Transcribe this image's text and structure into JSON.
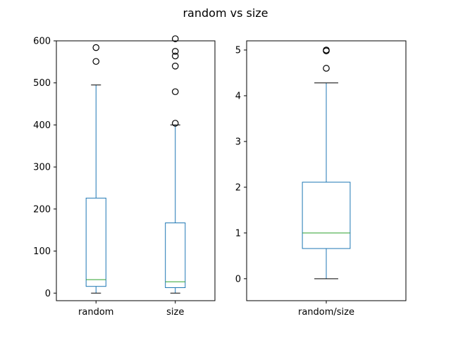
{
  "figure": {
    "title": "random vs size"
  },
  "colors": {
    "box": "#1f77b4",
    "median": "#2ca02c",
    "whisker": "#1f77b4",
    "cap": "#000000",
    "flier_edge": "#000000",
    "axes_edge": "#000000",
    "background": "#ffffff"
  },
  "chart_data": [
    {
      "type": "box",
      "ylim": [
        -18,
        600
      ],
      "yticks": [
        0,
        100,
        200,
        300,
        400,
        500,
        600
      ],
      "grid": false,
      "categories": [
        "random",
        "size"
      ],
      "boxes": [
        {
          "label": "random",
          "whislo": 0,
          "q1": 16,
          "med": 32,
          "q3": 226,
          "whishi": 495,
          "fliers": [
            551,
            584
          ]
        },
        {
          "label": "size",
          "whislo": 0,
          "q1": 13,
          "med": 27,
          "q3": 167,
          "whishi": 400,
          "fliers": [
            404,
            479,
            540,
            564,
            575,
            605
          ]
        }
      ]
    },
    {
      "type": "box",
      "ylim": [
        -0.48,
        5.2
      ],
      "yticks": [
        0,
        1,
        2,
        3,
        4,
        5
      ],
      "grid": false,
      "categories": [
        "random/size"
      ],
      "boxes": [
        {
          "label": "random/size",
          "whislo": 0,
          "q1": 0.66,
          "med": 1.0,
          "q3": 2.11,
          "whishi": 4.28,
          "fliers": [
            4.6,
            4.98,
            5.0
          ]
        }
      ]
    }
  ]
}
